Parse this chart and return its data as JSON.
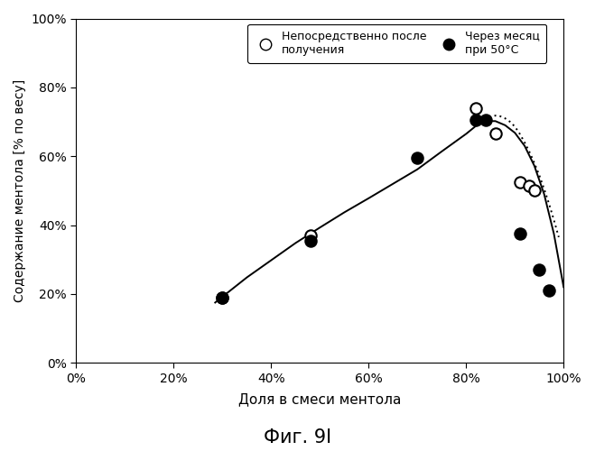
{
  "title": "Фиг. 9I",
  "xlabel": "Доля в смеси ментола",
  "ylabel": "Содержание ментола [% по весу]",
  "xlim": [
    0.0,
    1.0
  ],
  "ylim": [
    0.0,
    1.0
  ],
  "xticks": [
    0.0,
    0.2,
    0.4,
    0.6,
    0.8,
    1.0
  ],
  "yticks": [
    0.0,
    0.2,
    0.4,
    0.6,
    0.8,
    1.0
  ],
  "open_points": [
    [
      0.3,
      0.19
    ],
    [
      0.48,
      0.37
    ],
    [
      0.82,
      0.74
    ],
    [
      0.86,
      0.665
    ],
    [
      0.91,
      0.525
    ],
    [
      0.93,
      0.515
    ],
    [
      0.94,
      0.5
    ]
  ],
  "filled_points": [
    [
      0.3,
      0.19
    ],
    [
      0.48,
      0.355
    ],
    [
      0.7,
      0.595
    ],
    [
      0.82,
      0.705
    ],
    [
      0.84,
      0.705
    ],
    [
      0.91,
      0.375
    ],
    [
      0.95,
      0.27
    ],
    [
      0.97,
      0.21
    ]
  ],
  "solid_curve_x": [
    0.285,
    0.3,
    0.35,
    0.4,
    0.45,
    0.5,
    0.55,
    0.6,
    0.65,
    0.7,
    0.75,
    0.8,
    0.82,
    0.84,
    0.86,
    0.88,
    0.9,
    0.92,
    0.94,
    0.96,
    0.98,
    1.0
  ],
  "solid_curve_y": [
    0.175,
    0.192,
    0.248,
    0.298,
    0.348,
    0.393,
    0.437,
    0.478,
    0.52,
    0.562,
    0.614,
    0.665,
    0.688,
    0.702,
    0.702,
    0.69,
    0.668,
    0.63,
    0.572,
    0.49,
    0.375,
    0.22
  ],
  "dotted_curve_x": [
    0.82,
    0.84,
    0.86,
    0.87,
    0.88,
    0.89,
    0.9,
    0.91,
    0.92,
    0.93,
    0.94,
    0.95,
    0.96,
    0.97,
    0.98,
    0.99
  ],
  "dotted_curve_y": [
    0.69,
    0.71,
    0.718,
    0.716,
    0.71,
    0.7,
    0.686,
    0.665,
    0.64,
    0.612,
    0.58,
    0.545,
    0.505,
    0.462,
    0.415,
    0.365
  ],
  "legend_label_open": "Непосредственно после\nполучения",
  "legend_label_filled": "Через месяц\nпри 50°C",
  "bg_color": "#ffffff",
  "line_color": "#000000",
  "point_color_open": "#000000",
  "point_color_filled": "#000000"
}
